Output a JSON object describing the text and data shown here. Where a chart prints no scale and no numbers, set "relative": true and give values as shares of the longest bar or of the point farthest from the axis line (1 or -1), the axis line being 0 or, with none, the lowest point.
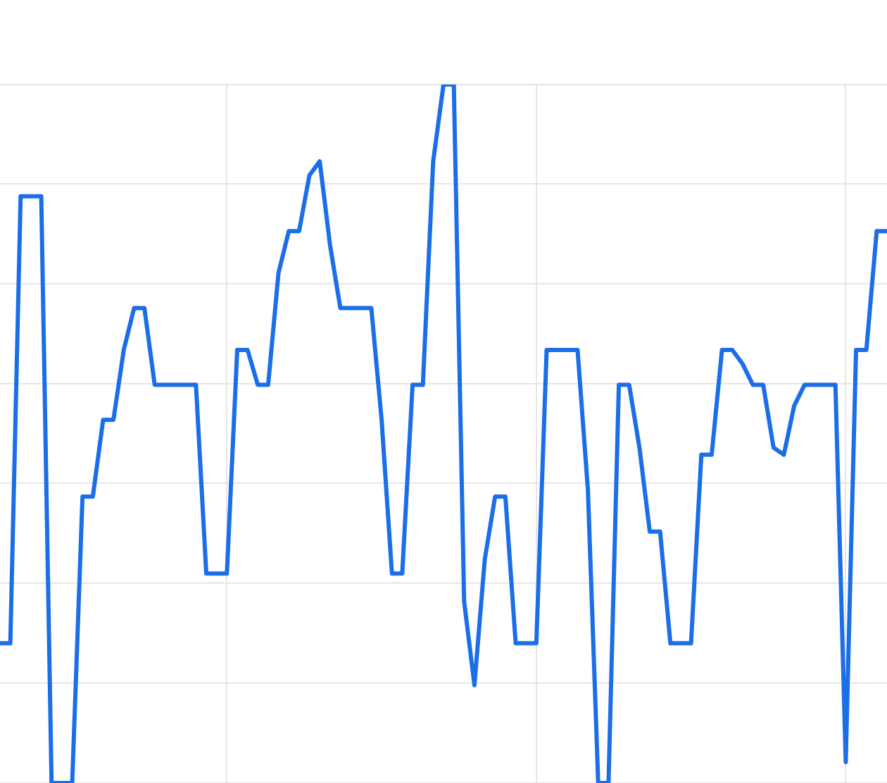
{
  "chart_data": {
    "type": "line",
    "relative": true,
    "grid": true,
    "categories": [
      null,
      null,
      null,
      null,
      null,
      null,
      null,
      null,
      null,
      null,
      null,
      null,
      null,
      null,
      null,
      null,
      null,
      null,
      null,
      null,
      null,
      null,
      null,
      null,
      null,
      null,
      null,
      null,
      null,
      null,
      null,
      null,
      null,
      null,
      null,
      null,
      null,
      null,
      null,
      null,
      null,
      null,
      null,
      null,
      null,
      null,
      null,
      null,
      null,
      null,
      null,
      null,
      null,
      null,
      null,
      null,
      null,
      null,
      null,
      null,
      null,
      null,
      null,
      null,
      null,
      null,
      null,
      null,
      null,
      null,
      null,
      null,
      null,
      null,
      null,
      null,
      null,
      null,
      null,
      null,
      null,
      null,
      null,
      null,
      null,
      null,
      null
    ],
    "series": [
      {
        "color": "#1a6ee8",
        "values": [
          0.2,
          0.2,
          0.84,
          0.84,
          0.84,
          0,
          0,
          0,
          0.41,
          0.41,
          0.52,
          0.52,
          0.62,
          0.68,
          0.68,
          0.57,
          0.57,
          0.57,
          0.57,
          0.57,
          0.3,
          0.3,
          0.3,
          0.62,
          0.62,
          0.57,
          0.57,
          0.73,
          0.79,
          0.79,
          0.87,
          0.89,
          0.77,
          0.68,
          0.68,
          0.68,
          0.68,
          0.52,
          0.3,
          0.3,
          0.57,
          0.57,
          0.89,
          1,
          1,
          0.26,
          0.14,
          0.32,
          0.41,
          0.41,
          0.2,
          0.2,
          0.2,
          0.62,
          0.62,
          0.62,
          0.62,
          0.42,
          0,
          0,
          0.57,
          0.57,
          0.48,
          0.36,
          0.36,
          0.2,
          0.2,
          0.2,
          0.47,
          0.47,
          0.62,
          0.62,
          0.6,
          0.57,
          0.57,
          0.48,
          0.47,
          0.54,
          0.57,
          0.57,
          0.57,
          0.57,
          0.03,
          0.62,
          0.62,
          0.79,
          0.79
        ]
      }
    ]
  }
}
